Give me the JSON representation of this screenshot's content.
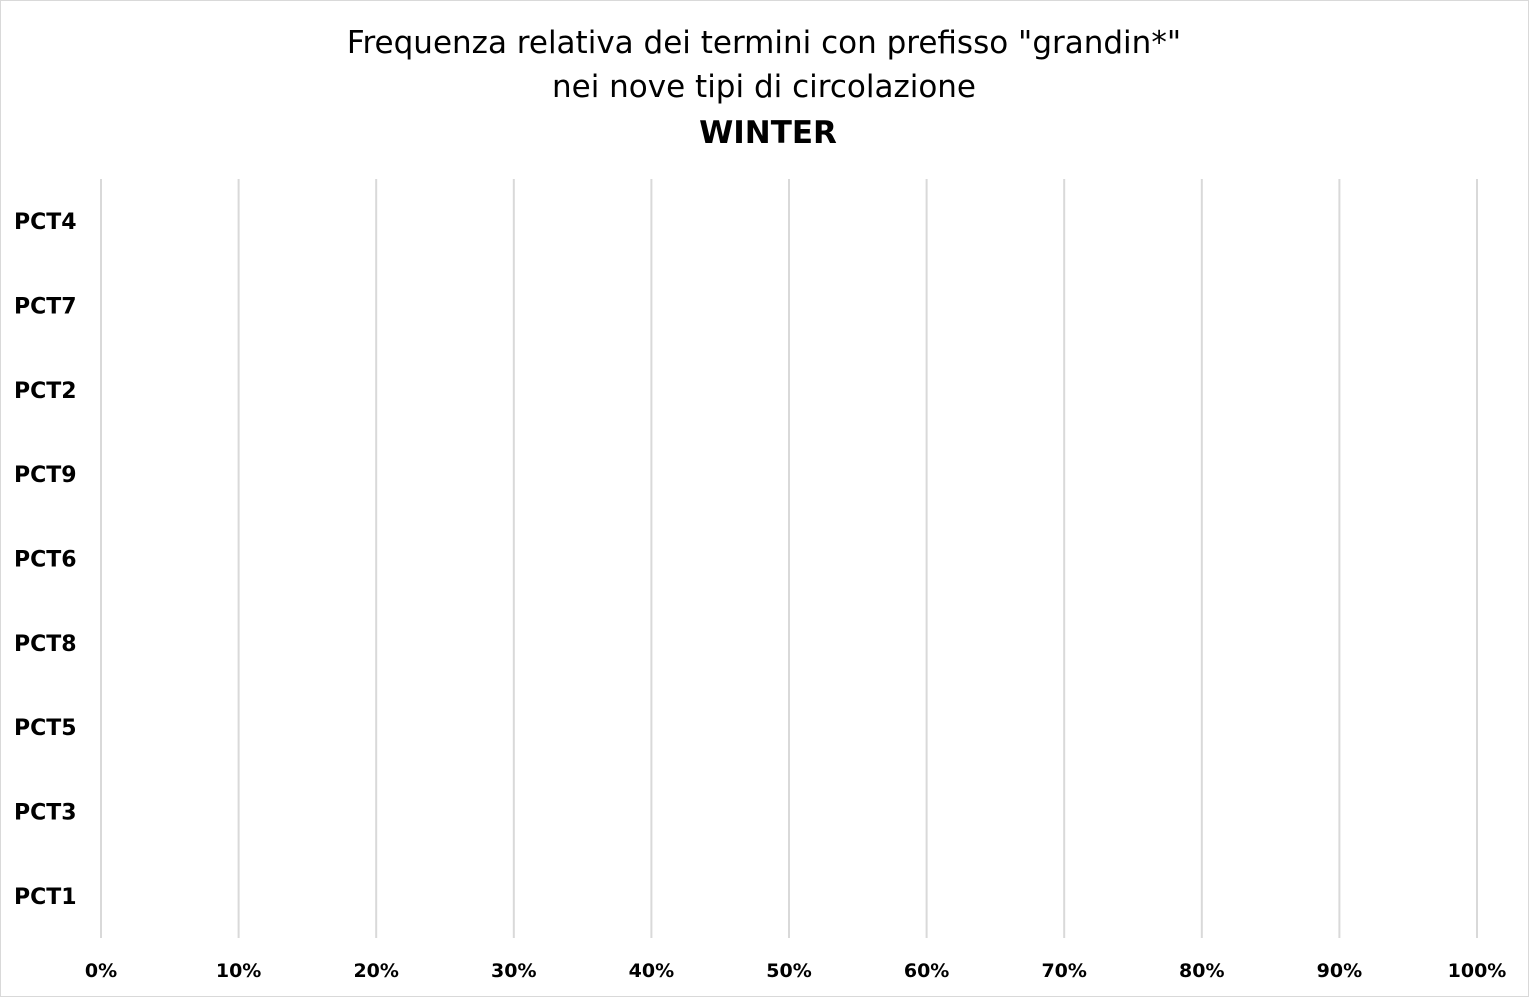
{
  "chart_data": {
    "type": "bar",
    "orientation": "horizontal",
    "title": "Frequenza relativa dei termini con prefisso \"grandin*\"",
    "subtitle": "nei nove tipi di circolazione",
    "season": "WINTER",
    "categories": [
      "PCT4",
      "PCT7",
      "PCT2",
      "PCT9",
      "PCT6",
      "PCT8",
      "PCT5",
      "PCT3",
      "PCT1"
    ],
    "values": [
      0,
      0,
      0,
      0,
      0,
      0,
      0,
      0,
      0
    ],
    "xlim": [
      0,
      100
    ],
    "x_ticks": [
      "0%",
      "10%",
      "20%",
      "30%",
      "40%",
      "50%",
      "60%",
      "70%",
      "80%",
      "90%",
      "100%"
    ],
    "grid": true,
    "legend": "none",
    "colors": {
      "grid": "#d9d9d9",
      "text": "#000000",
      "border": "#d9d9d9"
    }
  }
}
